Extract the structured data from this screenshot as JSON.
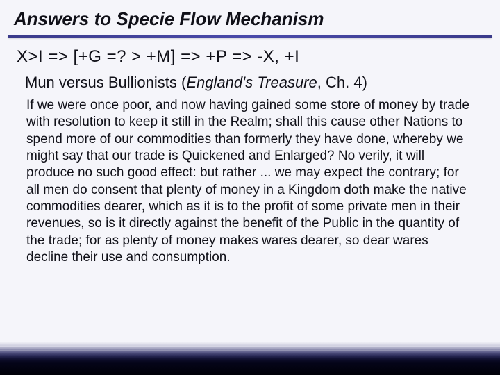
{
  "colors": {
    "text": "#101018",
    "underline": "#3a3a8a",
    "slide_bg": "#f5f5fa",
    "bottom_dark": "#000008"
  },
  "typography": {
    "title_fontsize": 26,
    "title_style": "bold italic",
    "formula_fontsize": 24,
    "subtitle_fontsize": 22,
    "body_fontsize": 19,
    "font_family": "Arial"
  },
  "slide": {
    "title": "Answers to Specie Flow Mechanism",
    "formula": "X>I => [+G  =? >  +M] => +P => -X, +I",
    "subtitle_prefix": "Mun versus Bullionists (",
    "subtitle_book": "England's Treasure",
    "subtitle_suffix": ", Ch. 4)",
    "body": " If we were once poor, and now having gained some store of money by trade with resolution to keep it still in the Realm; shall this cause other Nations to spend more of our commodities than formerly they have done, whereby we might say that our trade is Quickened and Enlarged? No verily, it will produce no such good effect: but rather ... we may expect the contrary; for all men do consent that plenty of money in a Kingdom doth make the native commodities dearer, which as it is to the profit of some private men in their revenues, so is it directly against the benefit of the Public in the quantity of the trade; for as plenty of money makes wares dearer, so dear wares decline their use and consumption."
  }
}
